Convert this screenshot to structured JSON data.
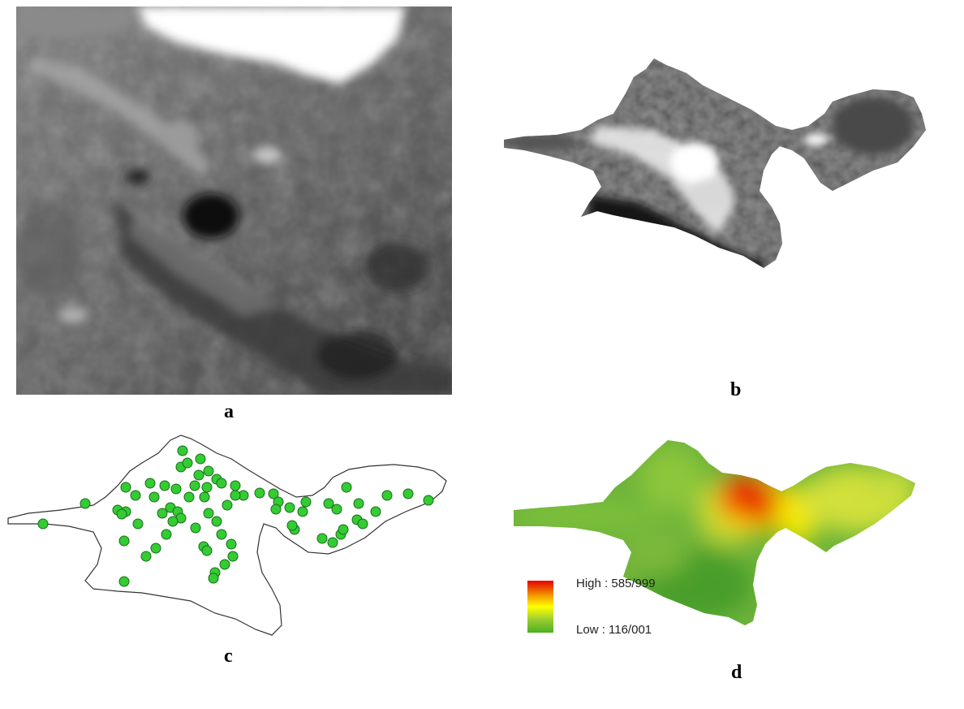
{
  "panels": [
    {
      "id": "a",
      "label": "a"
    },
    {
      "id": "b",
      "label": "b"
    },
    {
      "id": "c",
      "label": "c"
    },
    {
      "id": "d",
      "label": "d"
    }
  ],
  "legend": {
    "high_label": "High : 585/999",
    "low_label": "Low : 116/001",
    "colors": [
      "#e60000",
      "#f2a100",
      "#ffff00",
      "#9acd32",
      "#4caf20"
    ]
  },
  "stations": {
    "count": 72,
    "color": "#33cc33"
  }
}
